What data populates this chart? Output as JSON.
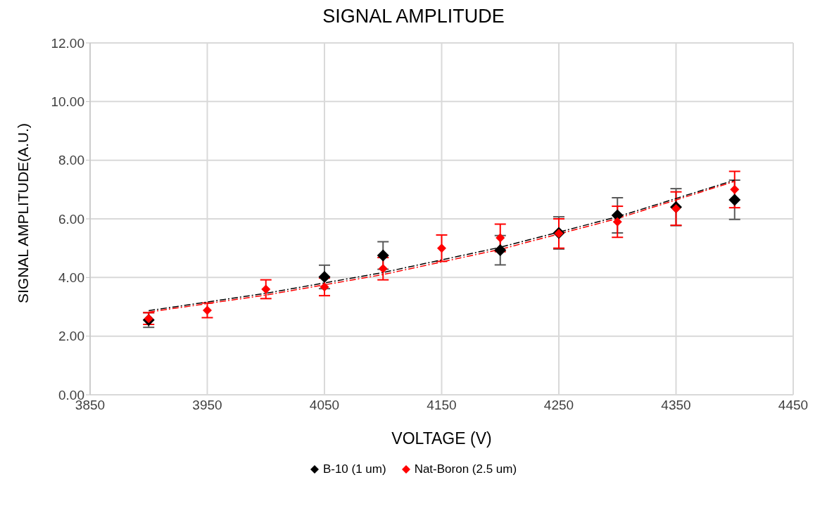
{
  "chart_data": {
    "type": "scatter",
    "title": "SIGNAL AMPLITUDE",
    "xlabel": "VOLTAGE (V)",
    "ylabel": "SIGNAL AMPLITUDE(A.U.)",
    "x": [
      3900,
      3950,
      4000,
      4050,
      4100,
      4150,
      4200,
      4250,
      4300,
      4350,
      4400
    ],
    "series": [
      {
        "name": "B-10 (1 um)",
        "color": "#000000",
        "marker": "diamond",
        "values": [
          2.55,
          null,
          null,
          4.02,
          4.75,
          null,
          4.93,
          5.52,
          6.12,
          6.4,
          6.65
        ],
        "errors": [
          0.25,
          null,
          null,
          0.4,
          0.47,
          null,
          0.5,
          0.55,
          0.6,
          0.63,
          0.67
        ]
      },
      {
        "name": "Nat-Boron (2.5 um)",
        "color": "#ff0000",
        "marker": "diamond",
        "values": [
          2.6,
          2.88,
          3.6,
          3.68,
          4.3,
          5.0,
          5.35,
          5.5,
          5.9,
          6.35,
          7.0
        ],
        "errors": [
          0.2,
          0.25,
          0.32,
          0.3,
          0.38,
          0.45,
          0.47,
          0.5,
          0.53,
          0.57,
          0.62
        ]
      },
      {
        "type": "line",
        "color": "#000000",
        "line_style": "dashed",
        "x": [
          3900,
          4000,
          4100,
          4200,
          4300,
          4400
        ],
        "values": [
          2.87,
          3.46,
          4.17,
          5.03,
          6.07,
          7.32
        ]
      },
      {
        "type": "line",
        "color": "#ff0000",
        "line_style": "dashed",
        "x": [
          3900,
          4000,
          4100,
          4200,
          4300,
          4400
        ],
        "values": [
          2.82,
          3.4,
          4.1,
          4.96,
          6.01,
          7.28
        ]
      }
    ],
    "xlim": [
      3850,
      4450
    ],
    "xticks": [
      3850,
      3950,
      4050,
      4150,
      4250,
      4350,
      4450
    ],
    "ylim": [
      0,
      12
    ],
    "yticks": [
      {
        "value": 0,
        "label": "0.00"
      },
      {
        "value": 2,
        "label": "2.00"
      },
      {
        "value": 4,
        "label": "4.00"
      },
      {
        "value": 6,
        "label": "6.00"
      },
      {
        "value": 8,
        "label": "8.00"
      },
      {
        "value": 10,
        "label": "10.00"
      },
      {
        "value": 12,
        "label": "12.00"
      }
    ],
    "grid": true,
    "legend": "bottom"
  }
}
